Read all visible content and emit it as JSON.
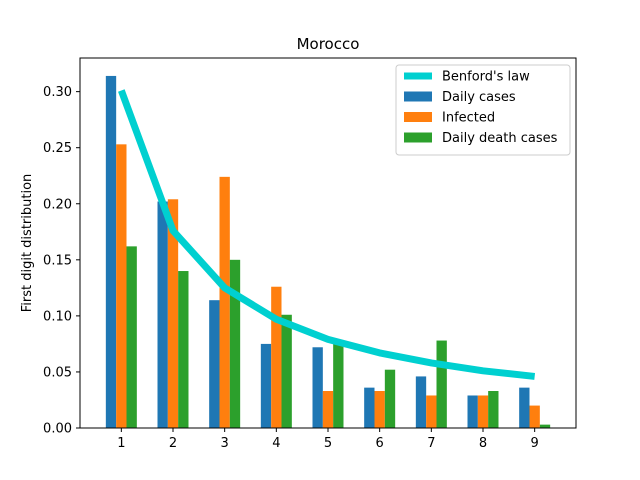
{
  "chart_data": {
    "type": "bar",
    "title": "Morocco",
    "xlabel": "",
    "ylabel": "First digit distribution",
    "categories": [
      "1",
      "2",
      "3",
      "4",
      "5",
      "6",
      "7",
      "8",
      "9"
    ],
    "ylim": [
      0,
      0.33
    ],
    "yticks": [
      "0.00",
      "0.05",
      "0.10",
      "0.15",
      "0.20",
      "0.25",
      "0.30"
    ],
    "grid": false,
    "legend_position": "top-right",
    "series": [
      {
        "name": "Daily cases",
        "kind": "bar",
        "color": "#1f77b4",
        "values": [
          0.314,
          0.202,
          0.114,
          0.075,
          0.072,
          0.036,
          0.046,
          0.029,
          0.036
        ]
      },
      {
        "name": "Infected",
        "kind": "bar",
        "color": "#ff7f0e",
        "values": [
          0.253,
          0.204,
          0.224,
          0.126,
          0.033,
          0.033,
          0.029,
          0.029,
          0.02
        ]
      },
      {
        "name": "Daily death cases",
        "kind": "bar",
        "color": "#2ca02c",
        "values": [
          0.162,
          0.14,
          0.15,
          0.101,
          0.075,
          0.052,
          0.078,
          0.033,
          0.003
        ]
      }
    ],
    "line": {
      "name": "Benford's law",
      "kind": "line",
      "color": "#00d0d0",
      "values": [
        0.301,
        0.176,
        0.125,
        0.097,
        0.079,
        0.067,
        0.058,
        0.051,
        0.046
      ]
    }
  }
}
